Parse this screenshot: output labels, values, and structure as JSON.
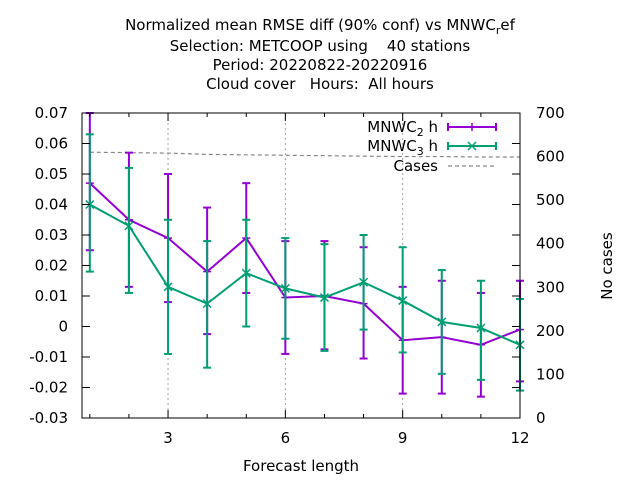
{
  "title_lines": [
    "Normalized mean RMSE diff (90% conf) vs MNWC",
    "Selection: METCOOP using    40 stations",
    "Period: 20220822-20220916",
    "Cloud cover   Hours:  All hours"
  ],
  "title_ref_subscript": "r",
  "title_ref_suffix": "ef",
  "chart_data": {
    "type": "line",
    "xlabel": "Forecast length",
    "ylabel": "",
    "y2label": "No cases",
    "xlim": [
      0.8,
      12
    ],
    "ylim": [
      -0.03,
      0.07
    ],
    "y2lim": [
      0,
      700
    ],
    "x_ticks": [
      3,
      6,
      9,
      12
    ],
    "y_ticks": [
      "-0.03",
      "-0.02",
      "-0.01",
      "0",
      "0.01",
      "0.02",
      "0.03",
      "0.04",
      "0.05",
      "0.06",
      "0.07"
    ],
    "y2_ticks": [
      "0",
      "100",
      "200",
      "300",
      "400",
      "500",
      "600",
      "700"
    ],
    "grid": true,
    "legend_position": "top-right",
    "series": [
      {
        "name": "MNWC",
        "name_sub": "2",
        "name_suffix": "h",
        "color": "#9400d3",
        "marker": "plus",
        "x": [
          1,
          2,
          3,
          4,
          5,
          6,
          7,
          8,
          9,
          10,
          11,
          12
        ],
        "values": [
          0.047,
          0.035,
          0.029,
          0.018,
          0.029,
          0.0095,
          0.01,
          0.0075,
          -0.0045,
          -0.0035,
          -0.006,
          -0.001
        ],
        "err_low": [
          0.025,
          0.013,
          0.008,
          -0.0025,
          0.011,
          -0.009,
          -0.0075,
          -0.0105,
          -0.022,
          -0.022,
          -0.023,
          -0.018
        ],
        "err_high": [
          0.07,
          0.057,
          0.05,
          0.039,
          0.047,
          0.028,
          0.028,
          0.026,
          0.013,
          0.015,
          0.011,
          0.015
        ]
      },
      {
        "name": "MNWC",
        "name_sub": "3",
        "name_suffix": "h",
        "color": "#009e73",
        "marker": "cross",
        "x": [
          1,
          2,
          3,
          4,
          5,
          6,
          7,
          8,
          9,
          10,
          11,
          12
        ],
        "values": [
          0.04,
          0.033,
          0.013,
          0.0075,
          0.0175,
          0.0125,
          0.0095,
          0.0145,
          0.0085,
          0.0015,
          -0.0005,
          -0.006
        ],
        "err_low": [
          0.018,
          0.011,
          -0.009,
          -0.0135,
          0.0,
          -0.004,
          -0.008,
          -0.001,
          -0.0085,
          -0.0155,
          -0.0175,
          -0.021
        ],
        "err_high": [
          0.063,
          0.052,
          0.035,
          0.028,
          0.035,
          0.029,
          0.027,
          0.03,
          0.026,
          0.0185,
          0.015,
          0.009
        ]
      },
      {
        "name": "Cases",
        "color": "#888888",
        "marker": "none",
        "dashed": true,
        "axis": "y2",
        "x": [
          1,
          2,
          3,
          4,
          5,
          6,
          7,
          8,
          9,
          10,
          11,
          12
        ],
        "values": [
          610,
          609,
          608,
          605,
          604,
          603,
          602,
          601,
          600,
          600,
          599,
          599
        ]
      }
    ]
  }
}
